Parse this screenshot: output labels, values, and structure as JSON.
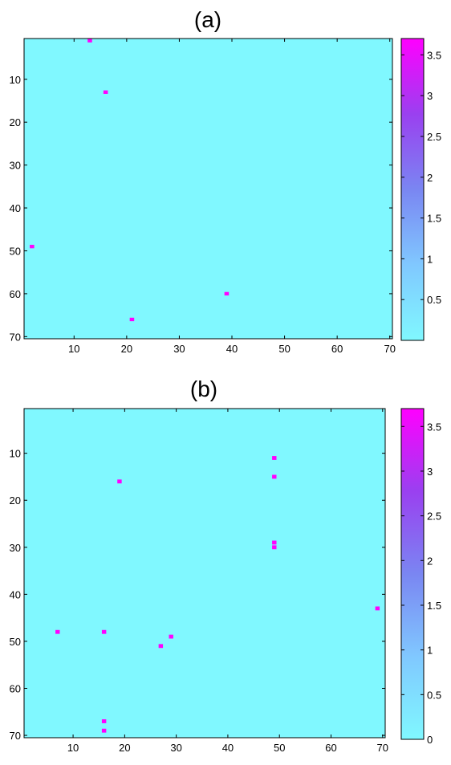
{
  "chart_data": [
    {
      "type": "heatmap",
      "title": "(a)",
      "xlim": [
        0.5,
        70.5
      ],
      "ylim": [
        0.5,
        70.5
      ],
      "y_reversed": true,
      "x_ticks": [
        "10",
        "20",
        "30",
        "40",
        "50",
        "60",
        "70"
      ],
      "y_ticks": [
        "10",
        "20",
        "30",
        "40",
        "50",
        "60",
        "70"
      ],
      "background_value": 0,
      "colorbar": {
        "range": [
          0,
          3.7
        ],
        "ticks": [
          "0.5",
          "1",
          "1.5",
          "2",
          "2.5",
          "3",
          "3.5"
        ],
        "color_low": "#80f8ff",
        "color_high": "#ff00ff"
      },
      "cells": [
        {
          "x": 13,
          "y": 1,
          "value": 3.7
        },
        {
          "x": 16,
          "y": 13,
          "value": 3.7
        },
        {
          "x": 2,
          "y": 49,
          "value": 3.7
        },
        {
          "x": 39,
          "y": 60,
          "value": 3.7
        },
        {
          "x": 21,
          "y": 66,
          "value": 3.7
        }
      ]
    },
    {
      "type": "heatmap",
      "title": "(b)",
      "xlim": [
        0.5,
        70.5
      ],
      "ylim": [
        0.5,
        70.5
      ],
      "y_reversed": true,
      "x_ticks": [
        "10",
        "20",
        "30",
        "40",
        "50",
        "60",
        "70"
      ],
      "y_ticks": [
        "10",
        "20",
        "30",
        "40",
        "50",
        "60",
        "70"
      ],
      "background_value": 0,
      "colorbar": {
        "range": [
          0,
          3.7
        ],
        "ticks": [
          "0",
          "0.5",
          "1",
          "1.5",
          "2",
          "2.5",
          "3",
          "3.5"
        ],
        "color_low": "#80f8ff",
        "color_high": "#ff00ff"
      },
      "cells": [
        {
          "x": 49,
          "y": 11,
          "value": 3.7
        },
        {
          "x": 49,
          "y": 15,
          "value": 3.7
        },
        {
          "x": 19,
          "y": 16,
          "value": 3.7
        },
        {
          "x": 49,
          "y": 29,
          "value": 3.7
        },
        {
          "x": 49,
          "y": 30,
          "value": 3.7
        },
        {
          "x": 69,
          "y": 43,
          "value": 3.7
        },
        {
          "x": 7,
          "y": 48,
          "value": 3.7
        },
        {
          "x": 16,
          "y": 48,
          "value": 3.7
        },
        {
          "x": 29,
          "y": 49,
          "value": 3.7
        },
        {
          "x": 27,
          "y": 51,
          "value": 3.7
        },
        {
          "x": 16,
          "y": 67,
          "value": 3.7
        },
        {
          "x": 16,
          "y": 69,
          "value": 3.7
        }
      ]
    }
  ]
}
